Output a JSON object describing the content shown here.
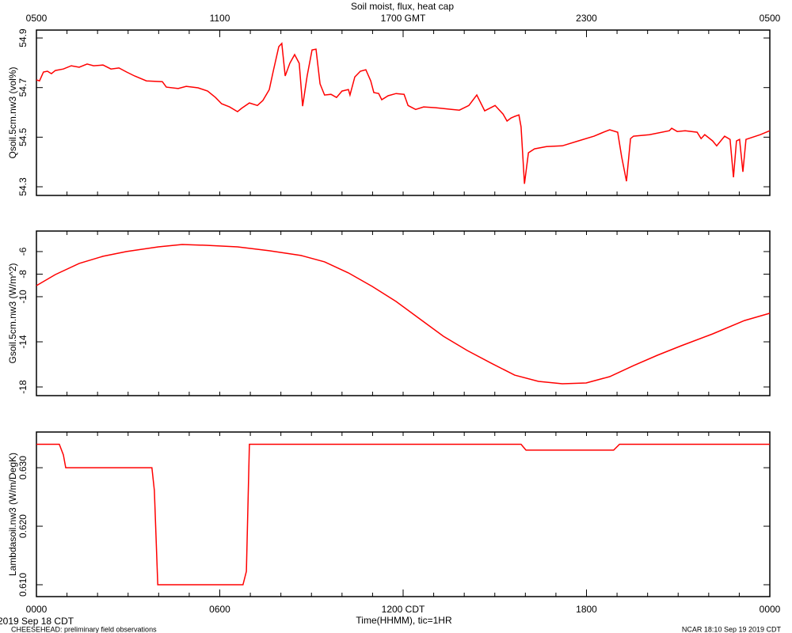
{
  "title": "Soil moist, flux, heat cap",
  "xlim": [
    0,
    24
  ],
  "xticks_gmt": [
    {
      "value": 0,
      "label": "0500"
    },
    {
      "value": 6,
      "label": "1100"
    },
    {
      "value": 12,
      "label": "1700 GMT"
    },
    {
      "value": 18,
      "label": "2300"
    },
    {
      "value": 24,
      "label": "0500"
    }
  ],
  "xticks_cdt": [
    {
      "value": 0,
      "label": "0000"
    },
    {
      "value": 6,
      "label": "0600"
    },
    {
      "value": 12,
      "label": "1200 CDT"
    },
    {
      "value": 18,
      "label": "1800"
    },
    {
      "value": 24,
      "label": "0000"
    }
  ],
  "xlabel": "Time(HHMM), tic=1HR",
  "date_label": "2019 Sep 18 CDT",
  "footer_left": "CHEESEHEAD: preliminary field observations",
  "footer_right": "NCAR 18:10 Sep 19 2019 CDT",
  "chart_data": [
    {
      "type": "line",
      "ylabel": "Qsoil.5cm.nw3 (vol%)",
      "color": "#ff0000",
      "ylim": [
        54.265,
        54.932
      ],
      "yticks": [
        54.3,
        54.5,
        54.7,
        54.9
      ],
      "x": [
        0,
        0.1,
        0.23,
        0.36,
        0.49,
        0.62,
        0.88,
        1.14,
        1.4,
        1.66,
        1.87,
        2.18,
        2.44,
        2.7,
        2.95,
        3.21,
        3.6,
        4.12,
        4.25,
        4.64,
        4.9,
        5.29,
        5.6,
        5.86,
        6.06,
        6.32,
        6.58,
        6.71,
        6.97,
        7.23,
        7.41,
        7.62,
        7.75,
        7.93,
        8.03,
        8.14,
        8.29,
        8.45,
        8.6,
        8.71,
        8.86,
        9.02,
        9.15,
        9.28,
        9.43,
        9.64,
        9.82,
        10.0,
        10.21,
        10.26,
        10.42,
        10.6,
        10.78,
        10.94,
        11.04,
        11.2,
        11.3,
        11.51,
        11.77,
        12.03,
        12.16,
        12.41,
        12.67,
        13.06,
        13.58,
        13.84,
        14.15,
        14.41,
        14.67,
        15.01,
        15.27,
        15.4,
        15.53,
        15.66,
        15.79,
        15.86,
        15.97,
        16.1,
        16.3,
        16.69,
        17.21,
        17.73,
        18.25,
        18.5,
        18.76,
        19.02,
        19.15,
        19.31,
        19.44,
        19.54,
        20.06,
        20.71,
        20.79,
        20.97,
        21.23,
        21.62,
        21.75,
        21.87,
        22.13,
        22.26,
        22.52,
        22.7,
        22.81,
        22.91,
        23.01,
        23.12,
        23.22,
        23.69,
        24.0
      ],
      "values": [
        54.731,
        54.727,
        54.763,
        54.766,
        54.756,
        54.769,
        54.775,
        54.788,
        54.782,
        54.795,
        54.788,
        54.791,
        54.775,
        54.779,
        54.763,
        54.747,
        54.727,
        54.724,
        54.702,
        54.696,
        54.705,
        54.699,
        54.686,
        54.66,
        54.635,
        54.622,
        54.603,
        54.616,
        54.638,
        54.628,
        54.648,
        54.692,
        54.766,
        54.865,
        54.878,
        54.747,
        54.798,
        54.833,
        54.798,
        54.625,
        54.747,
        54.852,
        54.855,
        54.715,
        54.67,
        54.673,
        54.66,
        54.686,
        54.692,
        54.67,
        54.743,
        54.766,
        54.772,
        54.727,
        54.68,
        54.676,
        54.651,
        54.667,
        54.676,
        54.673,
        54.628,
        54.612,
        54.622,
        54.619,
        54.612,
        54.609,
        54.628,
        54.67,
        54.606,
        54.628,
        54.593,
        54.565,
        54.577,
        54.584,
        54.59,
        54.542,
        54.312,
        54.437,
        54.453,
        54.462,
        54.465,
        54.485,
        54.504,
        54.517,
        54.53,
        54.52,
        54.421,
        54.322,
        54.494,
        54.504,
        54.51,
        54.526,
        54.536,
        54.523,
        54.526,
        54.52,
        54.494,
        54.51,
        54.485,
        54.465,
        54.504,
        54.491,
        54.338,
        54.485,
        54.491,
        54.36,
        54.491,
        54.51,
        54.526
      ]
    },
    {
      "type": "line",
      "ylabel": "Gsoil.5cm.nw3 (W/m^2)",
      "color": "#ff0000",
      "ylim": [
        -18.77,
        -4.18
      ],
      "yticks": [
        -6,
        -8,
        -10,
        -14,
        -18
      ],
      "x": [
        0,
        0.62,
        1.4,
        2.18,
        2.95,
        3.99,
        4.77,
        5.55,
        6.58,
        7.62,
        8.66,
        9.43,
        10.21,
        10.99,
        11.77,
        12.54,
        13.32,
        14.1,
        14.88,
        15.65,
        16.43,
        17.21,
        17.99,
        18.76,
        19.54,
        20.32,
        21.1,
        22.13,
        23.17,
        24
      ],
      "values": [
        -9.02,
        -8.04,
        -7.05,
        -6.42,
        -6.0,
        -5.58,
        -5.37,
        -5.44,
        -5.58,
        -5.93,
        -6.35,
        -6.91,
        -7.89,
        -9.09,
        -10.42,
        -11.96,
        -13.51,
        -14.77,
        -15.89,
        -16.95,
        -17.51,
        -17.72,
        -17.65,
        -17.09,
        -16.11,
        -15.19,
        -14.35,
        -13.3,
        -12.11,
        -11.47
      ]
    },
    {
      "type": "line",
      "ylabel": "Lambdasoil.nw3 (W/m/DegK)",
      "color": "#ff0000",
      "ylim": [
        0.60797,
        0.6361
      ],
      "yticks": [
        {
          "value": 0.61,
          "label": "0.610"
        },
        {
          "value": 0.62,
          "label": "0.620"
        },
        {
          "value": 0.63,
          "label": "0.630"
        }
      ],
      "x": [
        0,
        0.75,
        0.88,
        0.96,
        3.78,
        3.86,
        3.97,
        6.76,
        6.87,
        6.97,
        15.86,
        16.02,
        18.89,
        19.08,
        24
      ],
      "values": [
        0.634,
        0.634,
        0.6322,
        0.63,
        0.63,
        0.6261,
        0.61,
        0.61,
        0.6123,
        0.634,
        0.634,
        0.633,
        0.633,
        0.634,
        0.634
      ]
    }
  ]
}
